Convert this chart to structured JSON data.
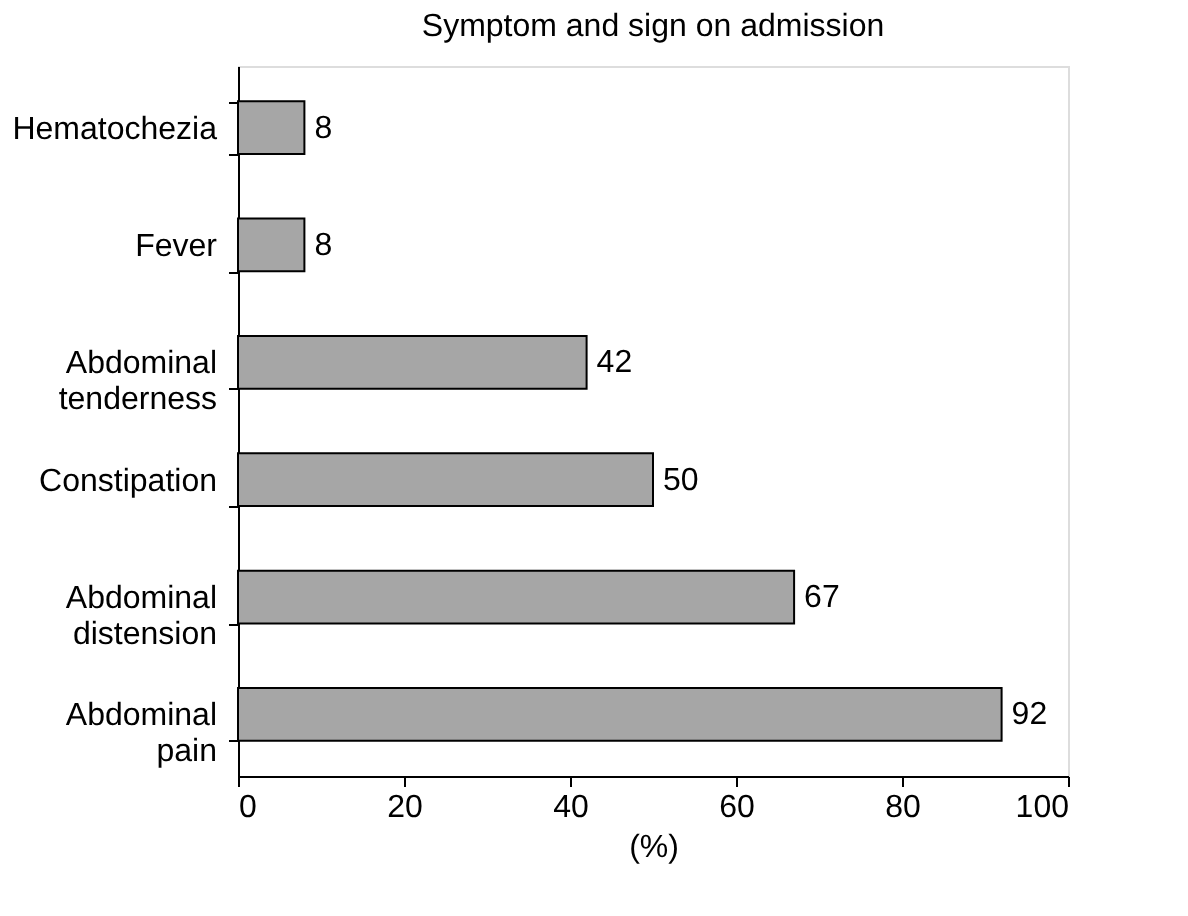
{
  "chart_data": {
    "type": "bar",
    "orientation": "horizontal",
    "title": "Symptom and sign on admission",
    "categories": [
      "Hematochezia",
      "Fever",
      "Abdominal tenderness",
      "Constipation",
      "Abdominal distension",
      "Abdominal pain"
    ],
    "values": [
      8,
      8,
      42,
      50,
      67,
      92
    ],
    "color": "#a6a6a6",
    "xlim": [
      0,
      100
    ],
    "xticks": [
      0,
      20,
      40,
      60,
      80,
      100
    ],
    "xlabel": "(%)",
    "grid": false,
    "data_labels": true
  }
}
